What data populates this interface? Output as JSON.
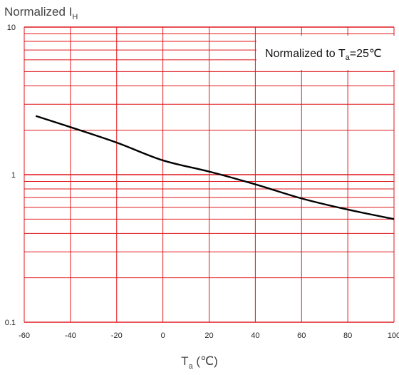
{
  "chart_data": {
    "type": "line",
    "x_axis": {
      "label_main": "T",
      "label_sub": "a",
      "label_unit": " (℃)",
      "range": [
        -60,
        100
      ],
      "ticks": [
        -60,
        -40,
        -20,
        0,
        20,
        40,
        60,
        80,
        100
      ],
      "tick_labels": [
        "-60",
        "-40",
        "-20",
        "0",
        "20",
        "40",
        "60",
        "80",
        "100"
      ]
    },
    "y_axis": {
      "label_main": "Normalized I",
      "label_sub": "H",
      "scale": "log",
      "range": [
        0.1,
        10
      ],
      "ticks": [
        0.1,
        1,
        10
      ],
      "tick_labels": [
        "0.1",
        "1",
        "10"
      ]
    },
    "grid": true,
    "legend": {
      "text_main": "Normalized to T",
      "text_sub": "a",
      "text_tail": "=25℃",
      "placement": "top-right"
    },
    "series": [
      {
        "color": "#000000",
        "x": [
          -55,
          -40,
          -20,
          0,
          20,
          40,
          60,
          80,
          100
        ],
        "y": [
          2.5,
          2.1,
          1.65,
          1.25,
          1.05,
          0.86,
          0.69,
          0.58,
          0.5
        ]
      }
    ]
  }
}
